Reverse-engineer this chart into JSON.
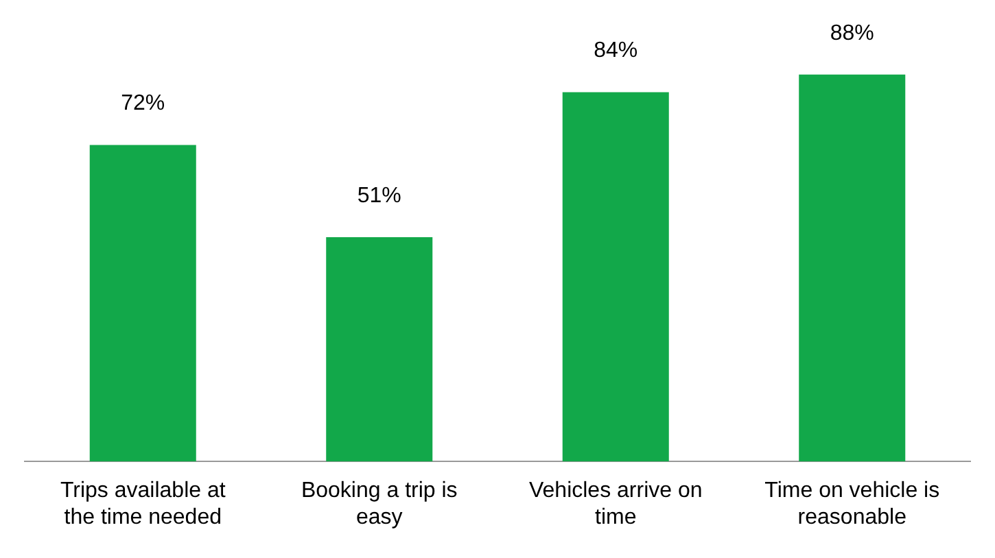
{
  "chart_data": {
    "type": "bar",
    "categories": [
      "Trips available at the time needed",
      "Booking a trip is easy",
      "Vehicles arrive on time",
      "Time on vehicle is reasonable"
    ],
    "values": [
      72,
      51,
      84,
      88
    ],
    "value_labels": [
      "72%",
      "51%",
      "84%",
      "88%"
    ],
    "color": "#12a84a",
    "grid": false,
    "legend": false
  }
}
